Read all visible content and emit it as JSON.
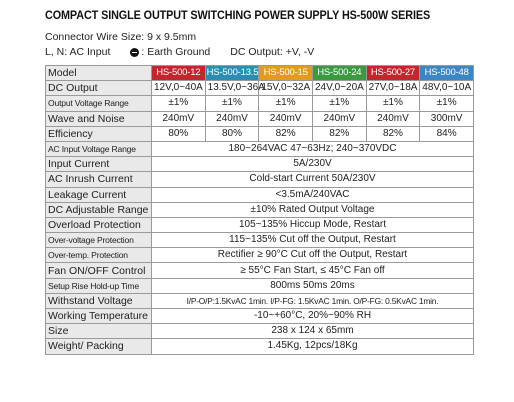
{
  "header": {
    "title": "COMPACT SINGLE OUTPUT SWITCHING POWER SUPPLY HS-500W SERIES",
    "connector": "Connector Wire Size: 9 x 9.5mm",
    "legend": [
      "L, N: AC Input",
      ": Earth Ground",
      "DC Output: +V, -V"
    ]
  },
  "table": {
    "header": [
      "Model",
      "HS-500-12",
      "HS-500-13.5",
      "HS-500-15",
      "HS-500-24",
      "HS-500-27",
      "HS-500-48"
    ],
    "rows": [
      [
        "DC Output",
        "12V,0~40A",
        "13.5V,0~36A",
        "15V,0~32A",
        "24V,0~20A",
        "27V,0~18A",
        "48V,0~10A"
      ],
      [
        "Output Voltage Range",
        "±1%",
        "±1%",
        "±1%",
        "±1%",
        "±1%",
        "±1%"
      ],
      [
        "Wave and Noise",
        "240mV",
        "240mV",
        "240mV",
        "240mV",
        "240mV",
        "300mV"
      ],
      [
        "Efficiency",
        "80%",
        "80%",
        "82%",
        "82%",
        "82%",
        "84%"
      ],
      [
        "AC Input Voltage Range",
        "180~264VAC 47~63Hz; 240~370VDC"
      ],
      [
        "Input Current",
        "5A/230V"
      ],
      [
        "AC Inrush Current",
        "Cold-start Current 50A/230V"
      ],
      [
        "Leakage Current",
        "<3.5mA/240VAC"
      ],
      [
        "DC Adjustable Range",
        "±10% Rated Output Voltage"
      ],
      [
        "Overload Protection",
        "105~135% Hiccup Mode, Restart"
      ],
      [
        "Over-voltage Protection",
        "115~135% Cut off the Output, Restart"
      ],
      [
        "Over-temp. Protection",
        "Rectifier ≥ 90°C Cut off the Output, Restart"
      ],
      [
        "Fan ON/OFF Control",
        "≥ 55°C Fan Start, ≤ 45°C Fan off"
      ],
      [
        "Setup Rise Hold-up Time",
        "800ms 50ms 20ms"
      ],
      [
        "Withstand Voltage",
        "I/P-O/P:1.5KvAC 1min.  I/P-FG: 1.5KvAC 1min.  O/P-FG: 0.5KvAC 1min."
      ],
      [
        "Working Temperature",
        "-10~+60°C, 20%~90% RH"
      ],
      [
        "Size",
        "238 x 124 x 65mm"
      ],
      [
        "Weight/ Packing",
        "1.45Kg, 12pcs/18Kg"
      ]
    ]
  }
}
